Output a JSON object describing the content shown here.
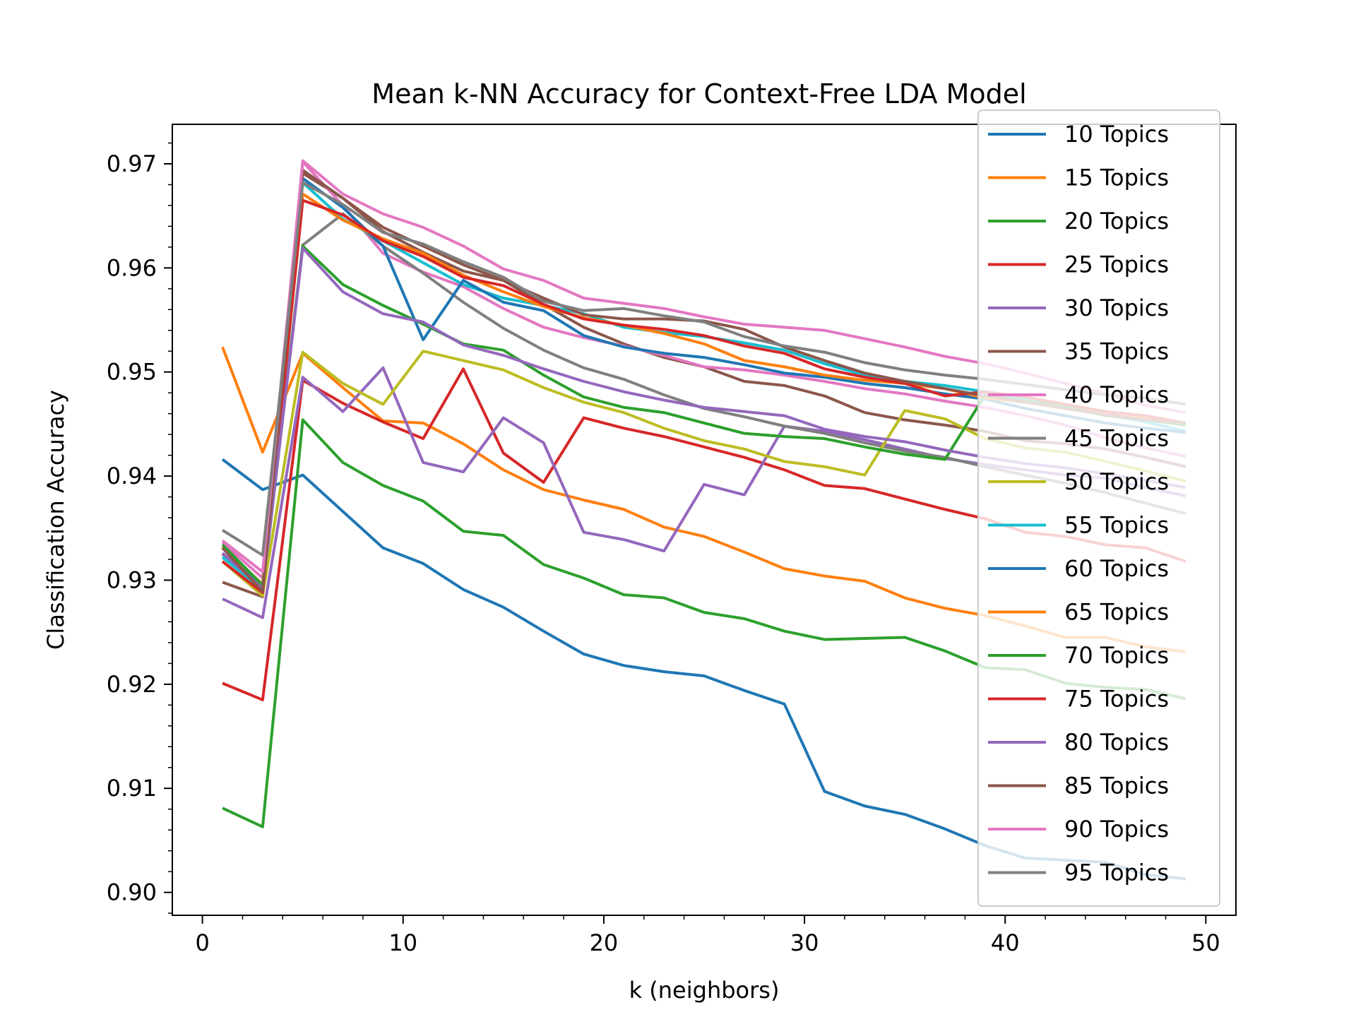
{
  "chart_data": {
    "type": "line",
    "title": "Mean k-NN Accuracy for Context-Free LDA Model",
    "xlabel": "k (neighbors)",
    "ylabel": "Classification Accuracy",
    "xlim": [
      -1.5,
      51.5
    ],
    "ylim": [
      0.8978,
      0.9738
    ],
    "xticks": [
      0,
      10,
      20,
      30,
      40,
      50
    ],
    "xtick_labels": [
      "0",
      "10",
      "20",
      "30",
      "40",
      "50"
    ],
    "yticks": [
      0.9,
      0.91,
      0.92,
      0.93,
      0.94,
      0.95,
      0.96,
      0.97
    ],
    "ytick_labels": [
      "0.90",
      "0.91",
      "0.92",
      "0.93",
      "0.94",
      "0.95",
      "0.96",
      "0.97"
    ],
    "grid": false,
    "legend_position": "upper right",
    "x": [
      1,
      3,
      5,
      7,
      9,
      11,
      13,
      15,
      17,
      19,
      21,
      23,
      25,
      27,
      29,
      31,
      33,
      35,
      37,
      39,
      41,
      43,
      45,
      47,
      49
    ],
    "series": [
      {
        "name": "10 Topics",
        "color": "#1f77b4",
        "values": [
          0.9416,
          0.9387,
          0.9401,
          0.9366,
          0.9331,
          0.9316,
          0.9291,
          0.9274,
          0.9251,
          0.9229,
          0.9218,
          0.9212,
          0.9208,
          0.9194,
          0.9181,
          0.9097,
          0.9083,
          0.9075,
          0.9061,
          0.9045,
          0.9033,
          0.9031,
          0.9029,
          0.9017,
          0.9013
        ]
      },
      {
        "name": "15 Topics",
        "color": "#ff7f0e",
        "values": [
          0.9524,
          0.9423,
          0.9518,
          0.9485,
          0.9453,
          0.9451,
          0.9431,
          0.9406,
          0.9387,
          0.9377,
          0.9368,
          0.9351,
          0.9342,
          0.9327,
          0.9311,
          0.9304,
          0.9299,
          0.9283,
          0.9273,
          0.9266,
          0.9256,
          0.9245,
          0.9245,
          0.9236,
          0.9231
        ]
      },
      {
        "name": "20 Topics",
        "color": "#2ca02c",
        "values": [
          0.9081,
          0.9063,
          0.9454,
          0.9413,
          0.9391,
          0.9376,
          0.9347,
          0.9343,
          0.9315,
          0.9302,
          0.9286,
          0.9283,
          0.9269,
          0.9263,
          0.9251,
          0.9243,
          0.9244,
          0.9245,
          0.9232,
          0.9216,
          0.9214,
          0.9201,
          0.9197,
          0.9195,
          0.9186
        ]
      },
      {
        "name": "25 Topics",
        "color": "#d62728",
        "values": [
          0.9201,
          0.9185,
          0.9492,
          0.947,
          0.9452,
          0.9436,
          0.9503,
          0.9422,
          0.9394,
          0.9456,
          0.9446,
          0.9438,
          0.9428,
          0.9418,
          0.9406,
          0.9391,
          0.9388,
          0.9378,
          0.9368,
          0.9359,
          0.9346,
          0.9342,
          0.9334,
          0.9331,
          0.9318
        ]
      },
      {
        "name": "30 Topics",
        "color": "#9467bd",
        "values": [
          0.9282,
          0.9264,
          0.9495,
          0.9462,
          0.9504,
          0.9413,
          0.9404,
          0.9456,
          0.9432,
          0.9346,
          0.9339,
          0.9328,
          0.9392,
          0.9382,
          0.9448,
          0.9443,
          0.9435,
          0.9426,
          0.9417,
          0.9411,
          0.9406,
          0.9401,
          0.9398,
          0.9389,
          0.9381
        ]
      },
      {
        "name": "35 Topics",
        "color": "#8c564b",
        "values": [
          0.9298,
          0.9284,
          0.9691,
          0.9667,
          0.9635,
          0.9615,
          0.9597,
          0.9588,
          0.9565,
          0.9543,
          0.9527,
          0.9514,
          0.9505,
          0.9491,
          0.9487,
          0.9477,
          0.9461,
          0.9454,
          0.9449,
          0.9443,
          0.9434,
          0.9431,
          0.9426,
          0.9418,
          0.9409
        ]
      },
      {
        "name": "40 Topics",
        "color": "#e377c2",
        "values": [
          0.9336,
          0.9302,
          0.9702,
          0.966,
          0.9614,
          0.9596,
          0.9582,
          0.9561,
          0.9543,
          0.9533,
          0.9525,
          0.9516,
          0.9505,
          0.9502,
          0.9497,
          0.9491,
          0.9484,
          0.9479,
          0.9472,
          0.9466,
          0.9458,
          0.9449,
          0.9437,
          0.9427,
          0.9419
        ]
      },
      {
        "name": "45 Topics",
        "color": "#7f7f7f",
        "values": [
          0.9325,
          0.9288,
          0.9622,
          0.9652,
          0.9621,
          0.9595,
          0.9567,
          0.9542,
          0.9521,
          0.9504,
          0.9493,
          0.9478,
          0.9465,
          0.9457,
          0.9448,
          0.9441,
          0.9432,
          0.9424,
          0.9418,
          0.9409,
          0.9401,
          0.9393,
          0.9384,
          0.9374,
          0.9364
        ]
      },
      {
        "name": "50 Topics",
        "color": "#bcbd22",
        "values": [
          0.9318,
          0.9285,
          0.9519,
          0.9489,
          0.9469,
          0.952,
          0.9511,
          0.9502,
          0.9485,
          0.9471,
          0.9461,
          0.9446,
          0.9434,
          0.9426,
          0.9414,
          0.9409,
          0.9401,
          0.9463,
          0.9455,
          0.9436,
          0.9427,
          0.9423,
          0.9414,
          0.9405,
          0.9395
        ]
      },
      {
        "name": "55 Topics",
        "color": "#17becf",
        "values": [
          0.9322,
          0.9291,
          0.9682,
          0.9647,
          0.9626,
          0.9605,
          0.9584,
          0.9571,
          0.9564,
          0.9556,
          0.9543,
          0.9538,
          0.9534,
          0.9528,
          0.9521,
          0.9508,
          0.9497,
          0.9491,
          0.9487,
          0.9481,
          0.9474,
          0.9466,
          0.9459,
          0.9452,
          0.9443
        ]
      },
      {
        "name": "60 Topics",
        "color": "#1f77b4",
        "values": [
          0.9331,
          0.9293,
          0.9686,
          0.9658,
          0.9621,
          0.9531,
          0.9588,
          0.9567,
          0.9559,
          0.9535,
          0.9524,
          0.9518,
          0.9514,
          0.9507,
          0.9499,
          0.9495,
          0.9489,
          0.9485,
          0.9479,
          0.9474,
          0.9465,
          0.9458,
          0.9451,
          0.9446,
          0.9442
        ]
      },
      {
        "name": "65 Topics",
        "color": "#ff7f0e",
        "values": [
          0.9332,
          0.9296,
          0.9671,
          0.9646,
          0.9628,
          0.9614,
          0.9593,
          0.9577,
          0.9563,
          0.9552,
          0.9545,
          0.9537,
          0.9527,
          0.9511,
          0.9505,
          0.9497,
          0.9492,
          0.9489,
          0.9484,
          0.9475,
          0.9471,
          0.9467,
          0.9462,
          0.9455,
          0.9451
        ]
      },
      {
        "name": "70 Topics",
        "color": "#2ca02c",
        "values": [
          0.9334,
          0.9295,
          0.9621,
          0.9584,
          0.9564,
          0.9546,
          0.9527,
          0.9521,
          0.9497,
          0.9476,
          0.9466,
          0.9461,
          0.9451,
          0.9441,
          0.9438,
          0.9436,
          0.9428,
          0.9421,
          0.9416,
          0.9478,
          0.9472,
          0.9467,
          0.9458,
          0.9454,
          0.9449
        ]
      },
      {
        "name": "75 Topics",
        "color": "#d62728",
        "values": [
          0.9318,
          0.9288,
          0.9665,
          0.9651,
          0.9626,
          0.9611,
          0.9591,
          0.9583,
          0.9565,
          0.9551,
          0.9545,
          0.9541,
          0.9535,
          0.9525,
          0.9518,
          0.9503,
          0.9495,
          0.9489,
          0.9477,
          0.9481,
          0.9476,
          0.9469,
          0.9462,
          0.9458,
          0.9451
        ]
      },
      {
        "name": "80 Topics",
        "color": "#9467bd",
        "values": [
          0.9326,
          0.9292,
          0.9619,
          0.9577,
          0.9556,
          0.9548,
          0.9526,
          0.9516,
          0.9503,
          0.9491,
          0.9481,
          0.9473,
          0.9466,
          0.9462,
          0.9458,
          0.9445,
          0.9438,
          0.9433,
          0.9425,
          0.9418,
          0.9412,
          0.9408,
          0.9402,
          0.9396,
          0.9389
        ]
      },
      {
        "name": "85 Topics",
        "color": "#8c564b",
        "values": [
          0.9331,
          0.9289,
          0.9694,
          0.9667,
          0.9639,
          0.9621,
          0.9603,
          0.9588,
          0.9571,
          0.9555,
          0.9551,
          0.9551,
          0.9549,
          0.9541,
          0.9524,
          0.9511,
          0.9499,
          0.9491,
          0.9484,
          0.9477,
          0.9471,
          0.9465,
          0.9459,
          0.9454,
          0.9451
        ]
      },
      {
        "name": "90 Topics",
        "color": "#e377c2",
        "values": [
          0.9338,
          0.9308,
          0.9703,
          0.9671,
          0.9652,
          0.9639,
          0.9621,
          0.9599,
          0.9588,
          0.9571,
          0.9566,
          0.9561,
          0.9553,
          0.9546,
          0.9543,
          0.954,
          0.9532,
          0.9524,
          0.9515,
          0.9508,
          0.9499,
          0.9489,
          0.9479,
          0.9468,
          0.9461
        ]
      },
      {
        "name": "95 Topics",
        "color": "#7f7f7f",
        "values": [
          0.9348,
          0.9324,
          0.9682,
          0.9661,
          0.9634,
          0.9623,
          0.9606,
          0.9591,
          0.9568,
          0.9559,
          0.9561,
          0.9554,
          0.9548,
          0.9534,
          0.9525,
          0.9519,
          0.9509,
          0.9502,
          0.9497,
          0.9493,
          0.9488,
          0.9483,
          0.9478,
          0.9475,
          0.9469
        ]
      }
    ]
  }
}
